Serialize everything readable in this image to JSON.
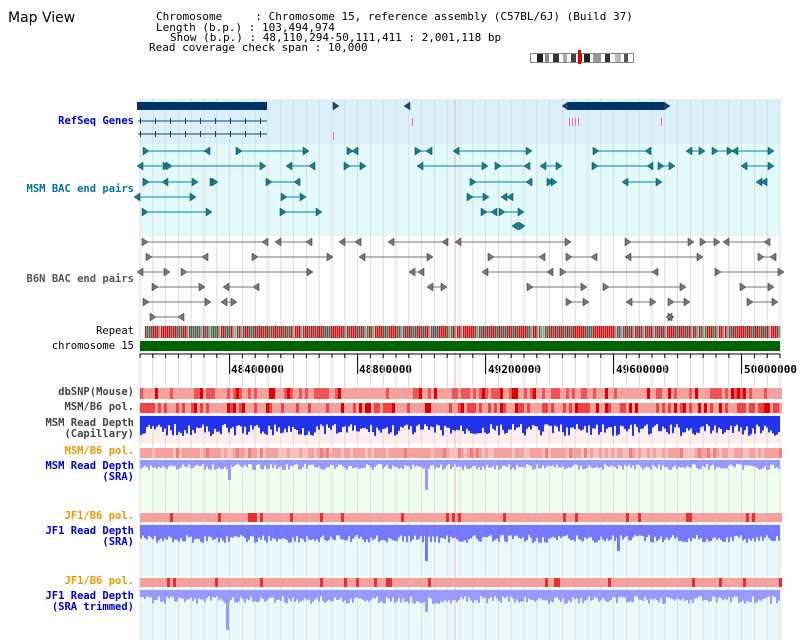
{
  "title": "Map View",
  "info": {
    "chromosome_key": "Chromosome",
    "chromosome_value": "Chromosome 15, reference assembly (C57BL/6J) (Build 37)",
    "length_key": "Length (b.p.)",
    "length_value": "103,494,974",
    "show_key": "Show (b.p.)",
    "show_value": "48,110,294-50,111,411 : 2,001,118 bp",
    "coverage_key": "Read coverage check span",
    "coverage_value": "10,000"
  },
  "tracks": {
    "refseq": "RefSeq Genes",
    "msm_bac": "MSM BAC end pairs",
    "b6n_bac": "B6N BAC end pairs",
    "repeat": "Repeat",
    "chromosome": "chromosome 15",
    "dbsnp": "dbSNP(Mouse)",
    "msm_b6_pol_1": "MSM/B6 pol.",
    "msm_depth_cap_1": "MSM Read Depth",
    "msm_depth_cap_2": "(Capillary)",
    "msm_b6_pol_2": "MSM/B6 pol.",
    "msm_depth_sra_1": "MSM Read Depth",
    "msm_depth_sra_2": "(SRA)",
    "jf1_b6_pol_1": "JF1/B6 pol.",
    "jf1_depth_sra_1": "JF1 Read Depth",
    "jf1_depth_sra_2": "(SRA)",
    "jf1_b6_pol_2": "JF1/B6 pol.",
    "jf1_depth_trim_1": "JF1 Read Depth",
    "jf1_depth_trim_2": "(SRA trimmed)"
  },
  "ruler": {
    "ticks": [
      "48400000",
      "48800000",
      "49200000",
      "49600000",
      "50000000"
    ]
  },
  "colors": {
    "refseq_label": "#0000cc",
    "msm_bac_label": "#007799",
    "b6n_bac_label": "#555555",
    "pol_label": "#e69a00",
    "depth_label": "#0000cc",
    "refseq_bg": "#daf1fb",
    "msm_bg": "#e3fafa",
    "b6n_bg": "#fdfdfd",
    "depth_bg": "#eeffee",
    "chromosome_bar": "#006400",
    "gene_dark": "#003366",
    "msm_bac_line": "#008899",
    "b6n_bac_line": "#777777"
  }
}
